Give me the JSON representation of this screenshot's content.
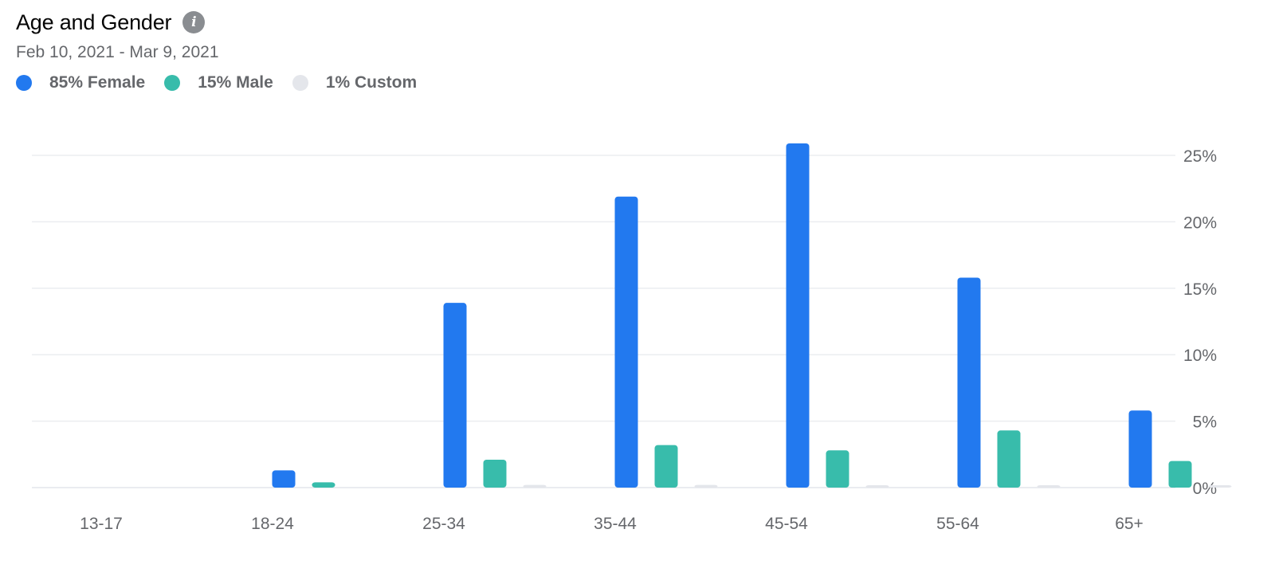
{
  "header": {
    "title": "Age and Gender",
    "info_icon": "info-icon",
    "date_range": "Feb 10, 2021 - Mar 9, 2021"
  },
  "legend": [
    {
      "label": "85% Female",
      "color": "#2279ef"
    },
    {
      "label": "15% Male",
      "color": "#38bcab"
    },
    {
      "label": "1% Custom",
      "color": "#e4e6eb"
    }
  ],
  "chart_data": {
    "type": "bar",
    "title": "Age and Gender",
    "subtitle": "Feb 10, 2021 - Mar 9, 2021",
    "categories": [
      "13-17",
      "18-24",
      "25-34",
      "35-44",
      "45-54",
      "55-64",
      "65+"
    ],
    "series": [
      {
        "name": "Female",
        "color": "#2279ef",
        "values": [
          0,
          1.3,
          13.9,
          21.9,
          25.9,
          15.8,
          5.8
        ]
      },
      {
        "name": "Male",
        "color": "#38bcab",
        "values": [
          0,
          0.4,
          2.1,
          3.2,
          2.8,
          4.3,
          2.0
        ]
      },
      {
        "name": "Custom",
        "color": "#e4e6eb",
        "values": [
          0,
          0,
          0.2,
          0.2,
          0.1,
          0.1,
          0.1
        ]
      }
    ],
    "y_ticks": [
      "0%",
      "5%",
      "10%",
      "15%",
      "20%",
      "25%"
    ],
    "ylim": [
      0,
      25
    ],
    "y_axis_position": "right",
    "grid": true,
    "legend_position": "top-left"
  }
}
